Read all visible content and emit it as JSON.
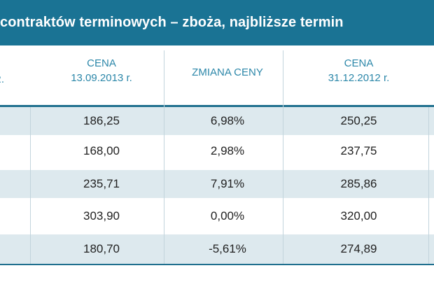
{
  "title": "ontraktów terminowych – zboża, najbliższe termin",
  "title_prefix_char": "c",
  "headers": [
    {
      "line1": "r.",
      "line2": ""
    },
    {
      "line1": "CENA",
      "line2": "13.09.2013 r."
    },
    {
      "line1": "ZMIANA CENY",
      "line2": ""
    },
    {
      "line1": "CENA",
      "line2": "31.12.2012 r."
    }
  ],
  "rows": [
    {
      "c1": "186,25",
      "c2": "6,98%",
      "c3": "250,25"
    },
    {
      "c1": "168,00",
      "c2": "2,98%",
      "c3": "237,75"
    },
    {
      "c1": "235,71",
      "c2": "7,91%",
      "c3": "285,86"
    },
    {
      "c1": "303,90",
      "c2": "0,00%",
      "c3": "320,00"
    },
    {
      "c1": "180,70",
      "c2": "-5,61%",
      "c3": "274,89"
    }
  ],
  "colors": {
    "title_bar": "#1a7394",
    "header_text": "#2c87a9",
    "shade_row": "#dde9ee"
  }
}
